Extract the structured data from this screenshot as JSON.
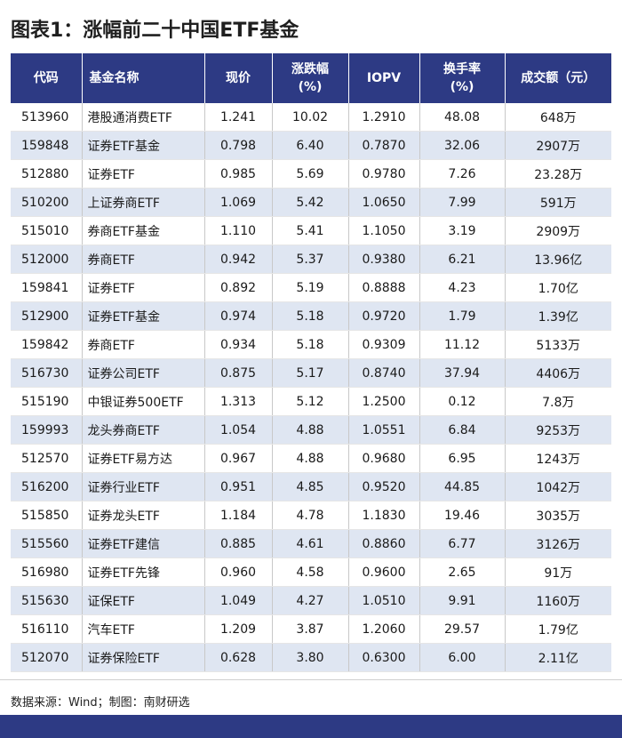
{
  "title": "图表1：涨幅前二十中国ETF基金",
  "columns": {
    "code": "代码",
    "name": "基金名称",
    "price": "现价",
    "change_line1": "涨跌幅",
    "change_line2": "(%)",
    "iopv": "IOPV",
    "turnover_line1": "换手率",
    "turnover_line2": "(%)",
    "volume": "成交额（元）"
  },
  "rows": [
    [
      "513960",
      "港股通消费ETF",
      "1.241",
      "10.02",
      "1.2910",
      "48.08",
      "648万"
    ],
    [
      "159848",
      "证券ETF基金",
      "0.798",
      "6.40",
      "0.7870",
      "32.06",
      "2907万"
    ],
    [
      "512880",
      "证券ETF",
      "0.985",
      "5.69",
      "0.9780",
      "7.26",
      "23.28万"
    ],
    [
      "510200",
      "上证券商ETF",
      "1.069",
      "5.42",
      "1.0650",
      "7.99",
      "591万"
    ],
    [
      "515010",
      "券商ETF基金",
      "1.110",
      "5.41",
      "1.1050",
      "3.19",
      "2909万"
    ],
    [
      "512000",
      "券商ETF",
      "0.942",
      "5.37",
      "0.9380",
      "6.21",
      "13.96亿"
    ],
    [
      "159841",
      "证券ETF",
      "0.892",
      "5.19",
      "0.8888",
      "4.23",
      "1.70亿"
    ],
    [
      "512900",
      "证券ETF基金",
      "0.974",
      "5.18",
      "0.9720",
      "1.79",
      "1.39亿"
    ],
    [
      "159842",
      "券商ETF",
      "0.934",
      "5.18",
      "0.9309",
      "11.12",
      "5133万"
    ],
    [
      "516730",
      "证券公司ETF",
      "0.875",
      "5.17",
      "0.8740",
      "37.94",
      "4406万"
    ],
    [
      "515190",
      "中银证券500ETF",
      "1.313",
      "5.12",
      "1.2500",
      "0.12",
      "7.8万"
    ],
    [
      "159993",
      "龙头券商ETF",
      "1.054",
      "4.88",
      "1.0551",
      "6.84",
      "9253万"
    ],
    [
      "512570",
      "证券ETF易方达",
      "0.967",
      "4.88",
      "0.9680",
      "6.95",
      "1243万"
    ],
    [
      "516200",
      "证券行业ETF",
      "0.951",
      "4.85",
      "0.9520",
      "44.85",
      "1042万"
    ],
    [
      "515850",
      "证券龙头ETF",
      "1.184",
      "4.78",
      "1.1830",
      "19.46",
      "3035万"
    ],
    [
      "515560",
      "证券ETF建信",
      "0.885",
      "4.61",
      "0.8860",
      "6.77",
      "3126万"
    ],
    [
      "516980",
      "证券ETF先锋",
      "0.960",
      "4.58",
      "0.9600",
      "2.65",
      "91万"
    ],
    [
      "515630",
      "证保ETF",
      "1.049",
      "4.27",
      "1.0510",
      "9.91",
      "1160万"
    ],
    [
      "516110",
      "汽车ETF",
      "1.209",
      "3.87",
      "1.2060",
      "29.57",
      "1.79亿"
    ],
    [
      "512070",
      "证券保险ETF",
      "0.628",
      "3.80",
      "0.6300",
      "6.00",
      "2.11亿"
    ]
  ],
  "footer": {
    "source": "数据来源：Wind；制图：南财研选"
  },
  "colors": {
    "header_bg": "#2d3a84",
    "stripe": "#dfe6f2"
  }
}
